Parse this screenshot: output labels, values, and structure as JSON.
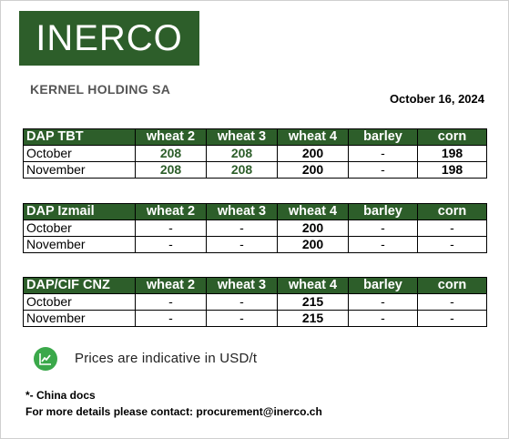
{
  "header": {
    "logo_text": "INERCO",
    "company": "KERNEL HOLDING SA",
    "date": "October 16, 2024"
  },
  "columns": [
    "wheat 2",
    "wheat 3",
    "wheat 4",
    "barley",
    "corn"
  ],
  "tables": [
    {
      "title": "DAP TBT",
      "rows": [
        {
          "month": "October",
          "values": [
            "208",
            "208",
            "200",
            "-",
            "198"
          ]
        },
        {
          "month": "November",
          "values": [
            "208",
            "208",
            "200",
            "-",
            "198"
          ]
        }
      ]
    },
    {
      "title": "DAP Izmail",
      "rows": [
        {
          "month": "October",
          "values": [
            "-",
            "-",
            "200",
            "-",
            "-"
          ]
        },
        {
          "month": "November",
          "values": [
            "-",
            "-",
            "200",
            "-",
            "-"
          ]
        }
      ]
    },
    {
      "title": "DAP/CIF CNZ",
      "rows": [
        {
          "month": "October",
          "values": [
            "-",
            "-",
            "215",
            "-",
            "-"
          ]
        },
        {
          "month": "November",
          "values": [
            "-",
            "-",
            "215",
            "-",
            "-"
          ]
        }
      ]
    }
  ],
  "note": {
    "icon": "trend-chart-icon",
    "text": "Prices are indicative  in USD/t"
  },
  "footer": {
    "line1": "*- China docs",
    "line2": "For more details please contact: procurement@inerco.ch"
  },
  "colors": {
    "brand_green": "#2d5e2a",
    "icon_green": "#3aa84a"
  }
}
